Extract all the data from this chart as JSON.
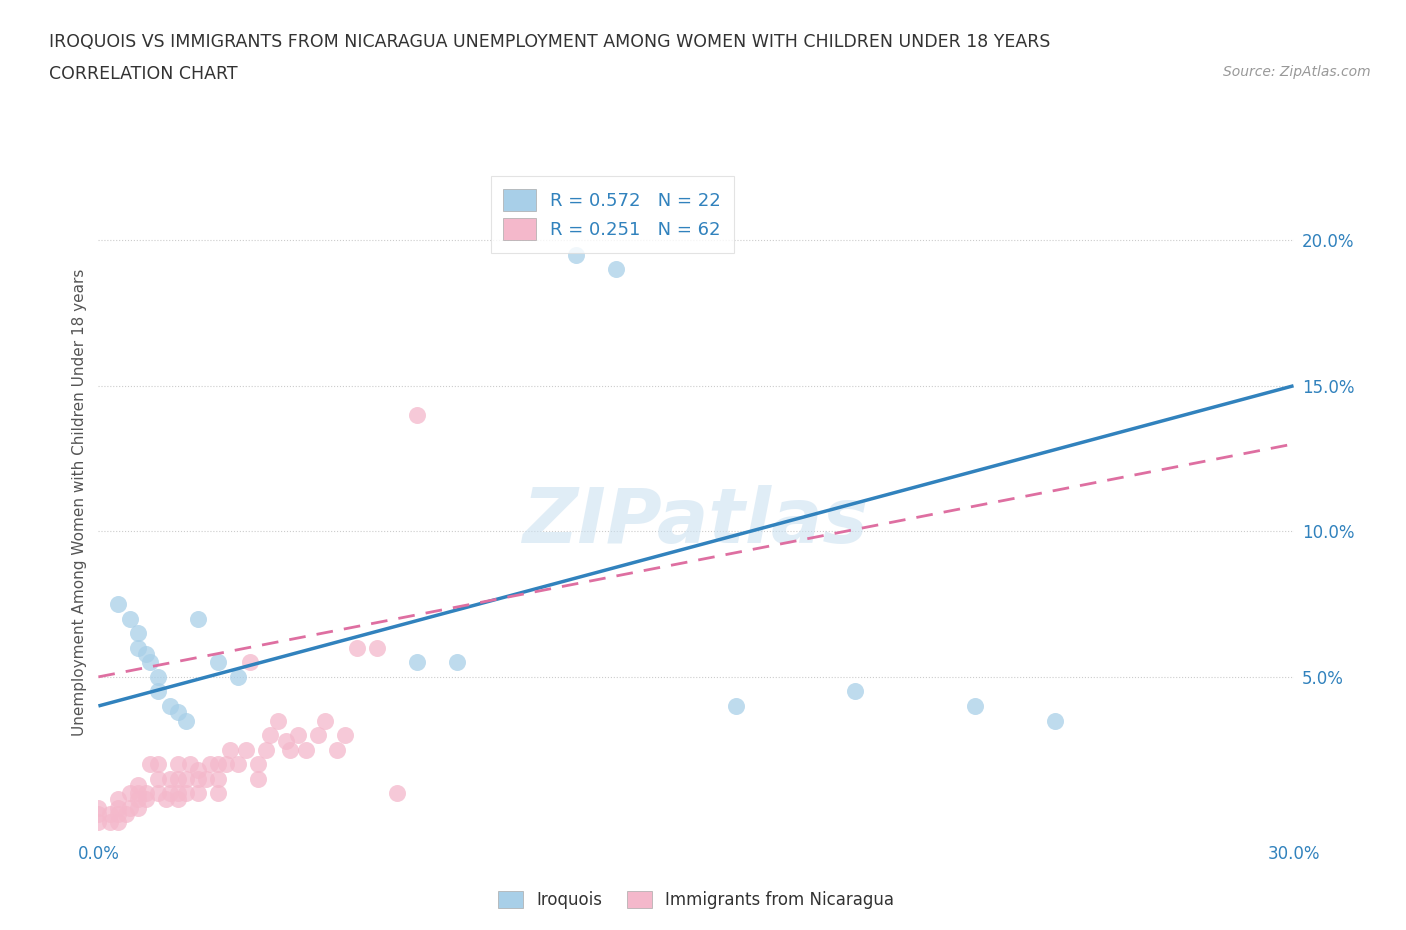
{
  "title_line1": "IROQUOIS VS IMMIGRANTS FROM NICARAGUA UNEMPLOYMENT AMONG WOMEN WITH CHILDREN UNDER 18 YEARS",
  "title_line2": "CORRELATION CHART",
  "source_text": "Source: ZipAtlas.com",
  "ylabel": "Unemployment Among Women with Children Under 18 years",
  "xlim": [
    0.0,
    0.3
  ],
  "ylim": [
    -0.005,
    0.225
  ],
  "xticks": [
    0.0,
    0.05,
    0.1,
    0.15,
    0.2,
    0.25,
    0.3
  ],
  "yticks": [
    0.05,
    0.1,
    0.15,
    0.2
  ],
  "blue_color": "#a8cfe8",
  "pink_color": "#f4b8cb",
  "blue_line_color": "#3182bd",
  "pink_line_color": "#de6fa1",
  "legend_R_blue": "0.572",
  "legend_N_blue": "22",
  "legend_R_pink": "0.251",
  "legend_N_pink": "62",
  "legend_label_blue": "Iroquois",
  "legend_label_pink": "Immigrants from Nicaragua",
  "watermark": "ZIPatlas",
  "blue_line_x0": 0.0,
  "blue_line_y0": 0.04,
  "blue_line_x1": 0.3,
  "blue_line_y1": 0.15,
  "pink_line_x0": 0.0,
  "pink_line_y0": 0.05,
  "pink_line_x1": 0.3,
  "pink_line_y1": 0.13,
  "iroquois_x": [
    0.005,
    0.008,
    0.01,
    0.01,
    0.012,
    0.013,
    0.015,
    0.015,
    0.018,
    0.02,
    0.022,
    0.025,
    0.03,
    0.035,
    0.08,
    0.09,
    0.12,
    0.13,
    0.16,
    0.19,
    0.22,
    0.24
  ],
  "iroquois_y": [
    0.075,
    0.07,
    0.065,
    0.06,
    0.058,
    0.055,
    0.05,
    0.045,
    0.04,
    0.038,
    0.035,
    0.07,
    0.055,
    0.05,
    0.055,
    0.055,
    0.195,
    0.19,
    0.04,
    0.045,
    0.04,
    0.035
  ],
  "nicaragua_x": [
    0.0,
    0.0,
    0.0,
    0.003,
    0.003,
    0.005,
    0.005,
    0.005,
    0.005,
    0.007,
    0.008,
    0.008,
    0.01,
    0.01,
    0.01,
    0.01,
    0.012,
    0.012,
    0.013,
    0.015,
    0.015,
    0.015,
    0.017,
    0.018,
    0.018,
    0.02,
    0.02,
    0.02,
    0.02,
    0.022,
    0.022,
    0.023,
    0.025,
    0.025,
    0.025,
    0.027,
    0.028,
    0.03,
    0.03,
    0.03,
    0.032,
    0.033,
    0.035,
    0.037,
    0.038,
    0.04,
    0.04,
    0.042,
    0.043,
    0.045,
    0.047,
    0.048,
    0.05,
    0.052,
    0.055,
    0.057,
    0.06,
    0.062,
    0.065,
    0.07,
    0.075,
    0.08
  ],
  "nicaragua_y": [
    0.0,
    0.003,
    0.005,
    0.0,
    0.003,
    0.0,
    0.003,
    0.005,
    0.008,
    0.003,
    0.005,
    0.01,
    0.005,
    0.008,
    0.01,
    0.013,
    0.008,
    0.01,
    0.02,
    0.01,
    0.015,
    0.02,
    0.008,
    0.01,
    0.015,
    0.008,
    0.01,
    0.015,
    0.02,
    0.01,
    0.015,
    0.02,
    0.01,
    0.015,
    0.018,
    0.015,
    0.02,
    0.01,
    0.015,
    0.02,
    0.02,
    0.025,
    0.02,
    0.025,
    0.055,
    0.015,
    0.02,
    0.025,
    0.03,
    0.035,
    0.028,
    0.025,
    0.03,
    0.025,
    0.03,
    0.035,
    0.025,
    0.03,
    0.06,
    0.06,
    0.01,
    0.14
  ]
}
